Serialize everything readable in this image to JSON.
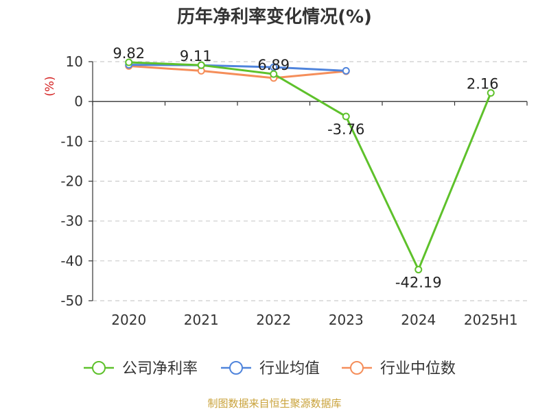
{
  "chart_data": {
    "type": "line",
    "title": "历年净利率变化情况(%)",
    "ylabel": "(%)",
    "categories": [
      "2020",
      "2021",
      "2022",
      "2023",
      "2024",
      "2025H1"
    ],
    "ylim": [
      -50,
      10
    ],
    "yticks": [
      "10",
      "0",
      "-10",
      "-20",
      "-30",
      "-40",
      "-50"
    ],
    "grid": true,
    "legend_position": "bottom",
    "series": [
      {
        "name": "公司净利率",
        "color": "#5ec12b",
        "values": [
          9.82,
          9.11,
          6.89,
          -3.76,
          -42.19,
          2.16
        ],
        "labels": [
          "9.82",
          "9.11",
          "6.89",
          "-3.76",
          "-42.19",
          "2.16"
        ]
      },
      {
        "name": "行业均值",
        "color": "#4f84dc",
        "values": [
          9.2,
          9.1,
          8.6,
          7.7,
          null,
          null
        ]
      },
      {
        "name": "行业中位数",
        "color": "#f58e5a",
        "values": [
          8.9,
          7.7,
          5.9,
          7.6,
          null,
          null
        ]
      }
    ]
  },
  "source": "制图数据来自恒生聚源数据库"
}
